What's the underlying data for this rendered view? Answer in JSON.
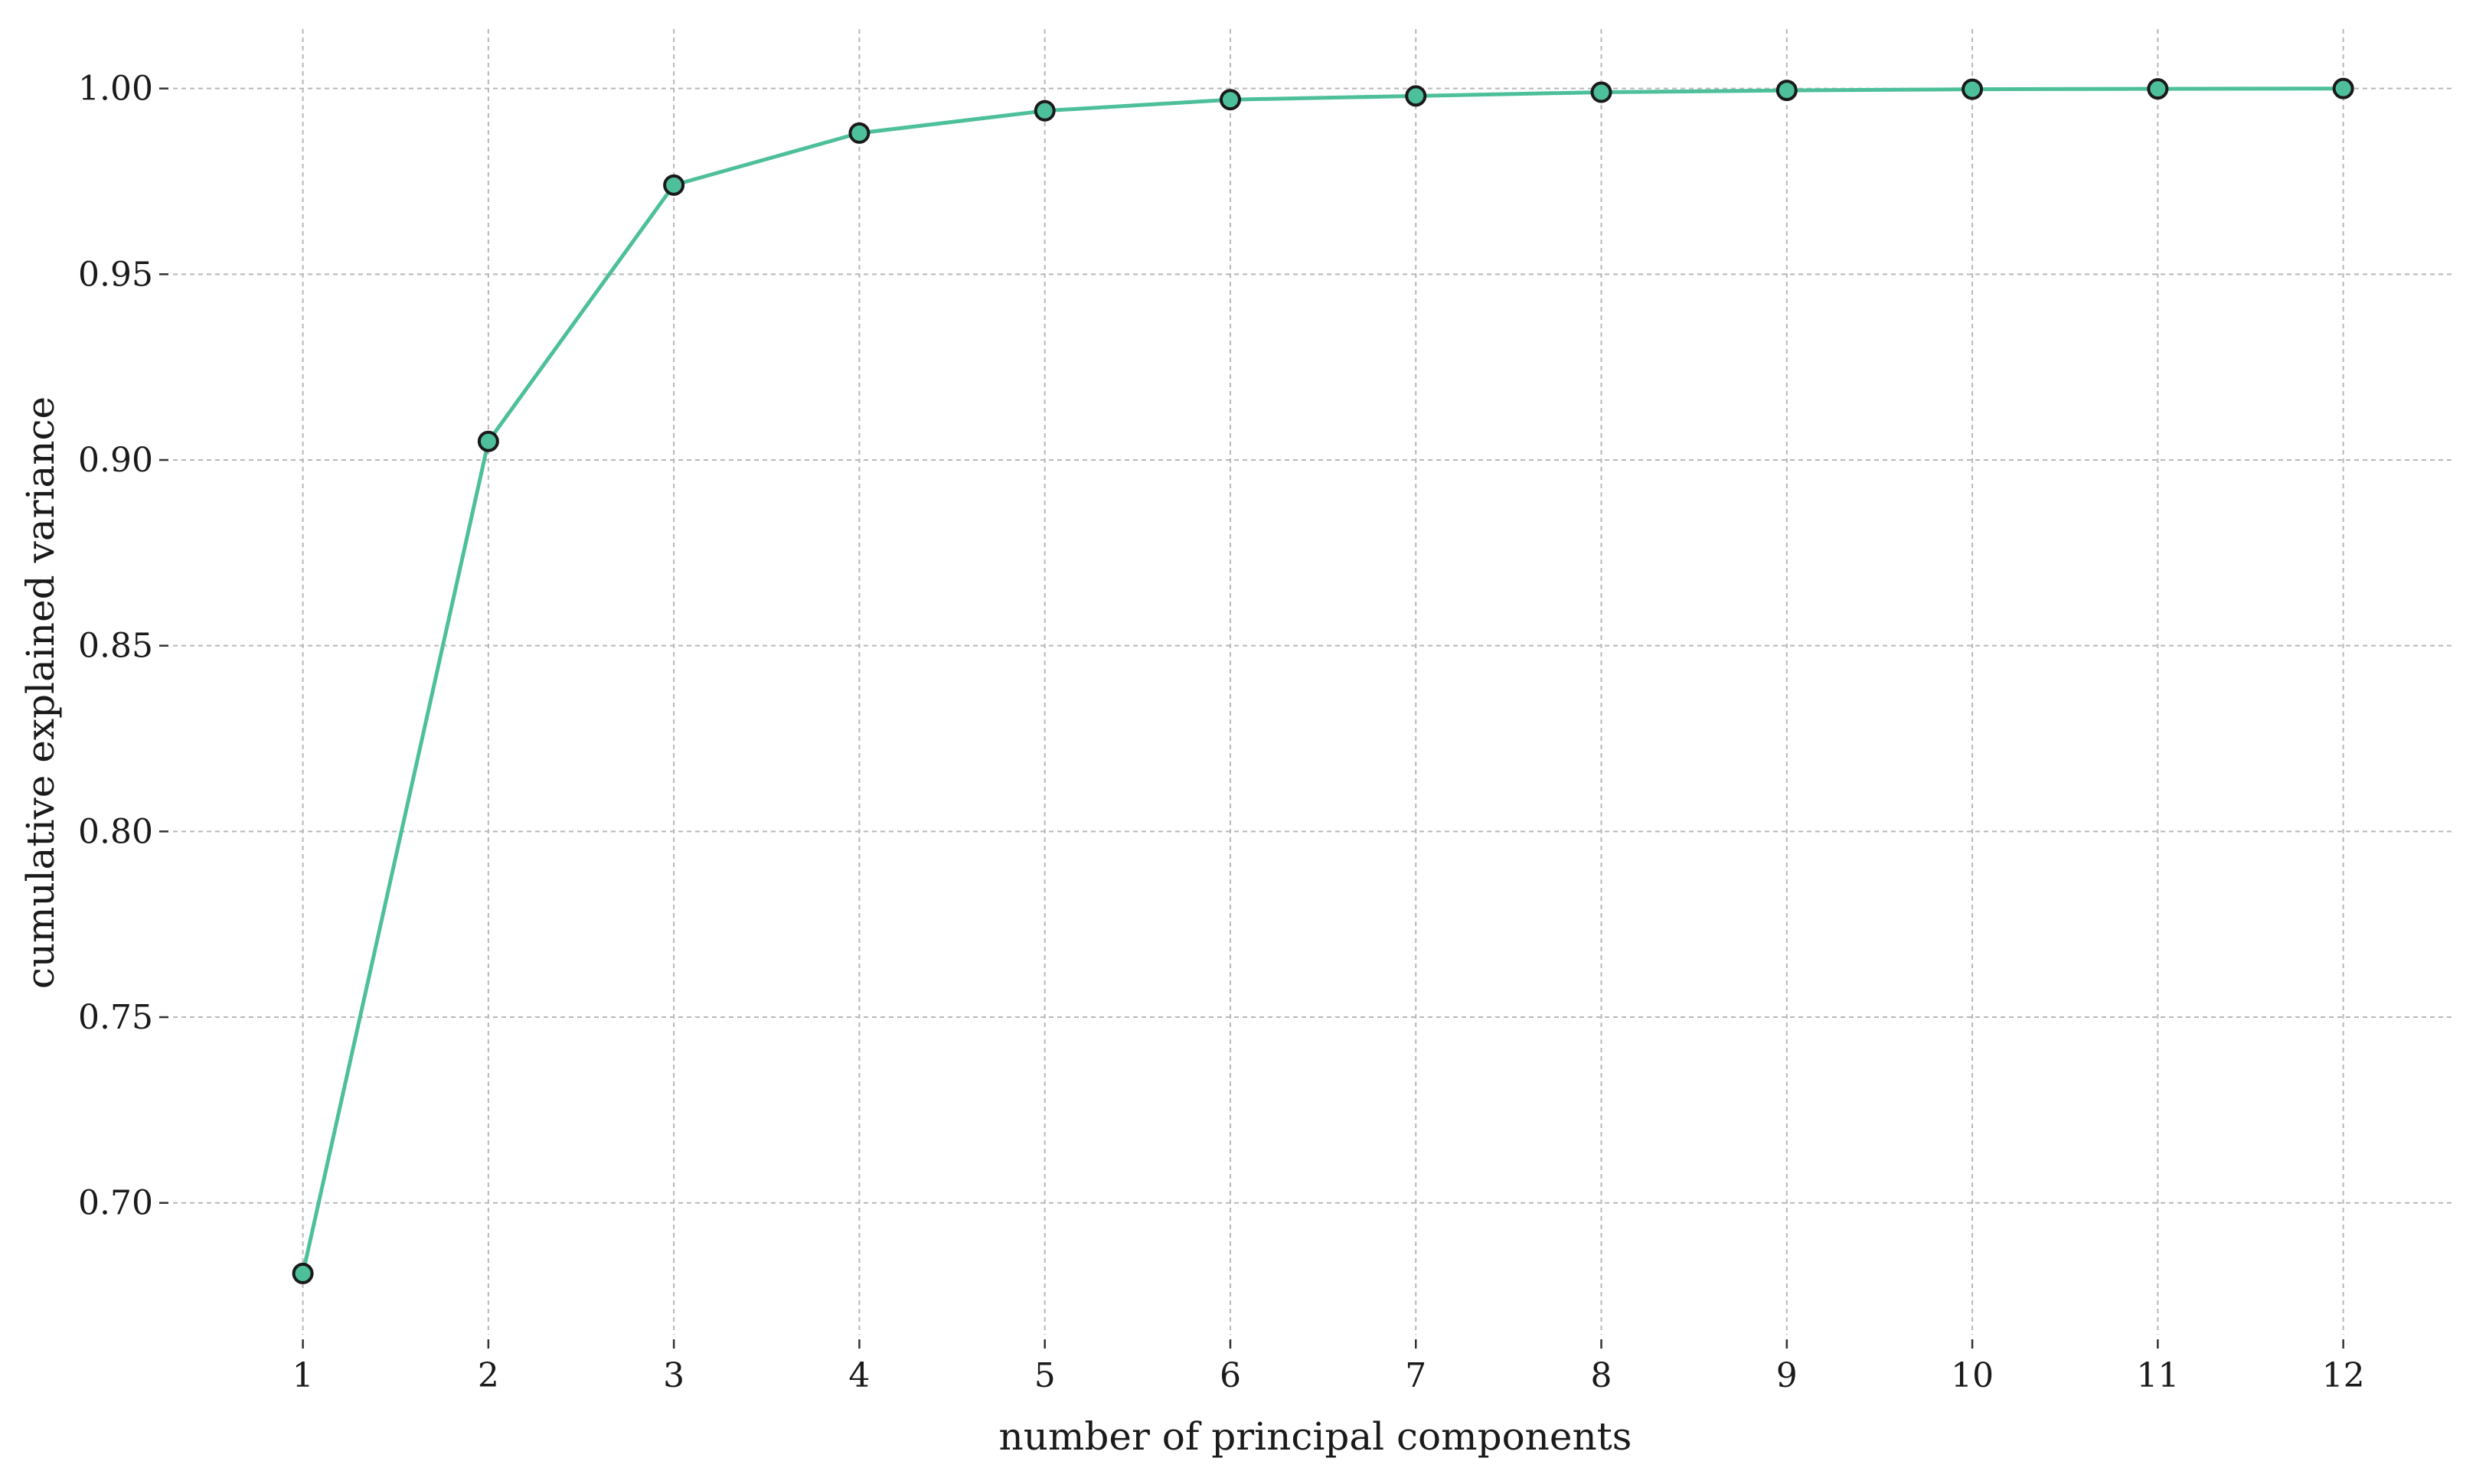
{
  "chart_data": {
    "type": "line",
    "title": "",
    "xlabel": "number of principal components",
    "ylabel": "cumulative explained variance",
    "x": [
      1,
      2,
      3,
      4,
      5,
      6,
      7,
      8,
      9,
      10,
      11,
      12
    ],
    "series": [
      {
        "values": [
          0.681,
          0.905,
          0.974,
          0.988,
          0.994,
          0.997,
          0.998,
          0.999,
          0.9995,
          0.9998,
          0.9999,
          1.0
        ],
        "color": "#4dbf9b",
        "marker": "circle",
        "marker_edge_color": "#1a1a1a"
      }
    ],
    "xticks": [
      1,
      2,
      3,
      4,
      5,
      6,
      7,
      8,
      9,
      10,
      11,
      12
    ],
    "xtick_labels": [
      "1",
      "2",
      "3",
      "4",
      "5",
      "6",
      "7",
      "8",
      "9",
      "10",
      "11",
      "12"
    ],
    "yticks": [
      0.7,
      0.75,
      0.8,
      0.85,
      0.9,
      0.95,
      1.0
    ],
    "ytick_labels": [
      "0.70",
      "0.75",
      "0.80",
      "0.85",
      "0.90",
      "0.95",
      "1.00"
    ],
    "xlim": [
      0.3,
      12.6
    ],
    "ylim": [
      0.6645,
      1.016
    ],
    "grid": true,
    "grid_style": "dashed",
    "grid_color": "#b8b8b8",
    "legend": "none"
  }
}
